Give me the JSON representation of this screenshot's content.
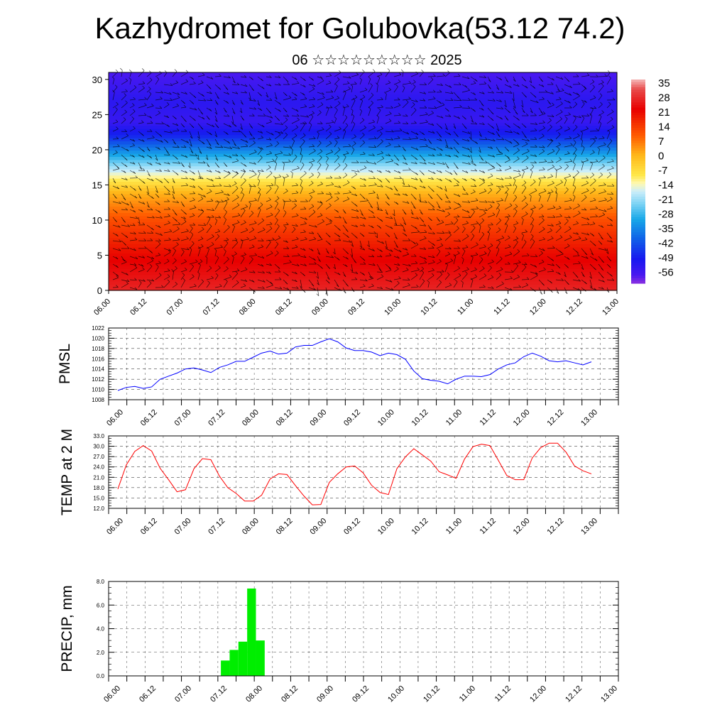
{
  "title": "Kazhydromet for Golubovka(53.12 74.2)",
  "subtitle": "06 ☆☆☆☆☆☆☆☆☆ 2025",
  "time_labels": [
    "06.00",
    "06.12",
    "07.00",
    "07.12",
    "08.00",
    "08.12",
    "09.00",
    "09.12",
    "10.00",
    "10.12",
    "11.00",
    "11.12",
    "12.00",
    "12.12",
    "13.00"
  ],
  "chart_data": [
    {
      "type": "heatmap",
      "y_ticks": [
        0,
        5,
        10,
        15,
        20,
        25,
        30
      ],
      "ylim": [
        0,
        31
      ],
      "colorbar": {
        "labels": [
          "35",
          "28",
          "21",
          "14",
          "7",
          "0",
          "-7",
          "-14",
          "-21",
          "-28",
          "-35",
          "-42",
          "-49",
          "-56"
        ],
        "stops": [
          {
            "value": 40,
            "color": "#f5b8b8"
          },
          {
            "value": 35,
            "color": "#e84a4a"
          },
          {
            "value": 25,
            "color": "#e80000"
          },
          {
            "value": 12,
            "color": "#ff5a00"
          },
          {
            "value": 2,
            "color": "#ffb81a"
          },
          {
            "value": -8,
            "color": "#ffe84a"
          },
          {
            "value": -12,
            "color": "#fff8b0"
          },
          {
            "value": -16,
            "color": "#cdeefa"
          },
          {
            "value": -22,
            "color": "#7fd4f5"
          },
          {
            "value": -30,
            "color": "#18a8e8"
          },
          {
            "value": -40,
            "color": "#1060e8"
          },
          {
            "value": -50,
            "color": "#1818f0"
          },
          {
            "value": -58,
            "color": "#4a18f0"
          },
          {
            "value": -62,
            "color": "#8a30e0"
          }
        ]
      },
      "profile": [
        {
          "level": 0,
          "value": 30
        },
        {
          "level": 5,
          "value": 24
        },
        {
          "level": 10,
          "value": 14
        },
        {
          "level": 14,
          "value": 2
        },
        {
          "level": 16,
          "value": -10
        },
        {
          "level": 18,
          "value": -22
        },
        {
          "level": 20,
          "value": -35
        },
        {
          "level": 22,
          "value": -48
        },
        {
          "level": 24,
          "value": -55
        },
        {
          "level": 27,
          "value": -53
        },
        {
          "level": 31,
          "value": -58
        }
      ]
    },
    {
      "type": "line",
      "ylabel": "PMSL",
      "y_ticks": [
        1008,
        1010,
        1012,
        1014,
        1016,
        1018,
        1020,
        1022
      ],
      "ylim": [
        1008,
        1022
      ],
      "color": "#0000ff",
      "values": [
        1009.8,
        1010.4,
        1010.6,
        1010.2,
        1010.5,
        1012.0,
        1012.6,
        1013.2,
        1014.0,
        1014.2,
        1013.8,
        1013.3,
        1014.3,
        1014.8,
        1015.5,
        1015.5,
        1016.3,
        1017.1,
        1017.5,
        1016.9,
        1017.1,
        1018.3,
        1018.6,
        1018.6,
        1019.3,
        1019.9,
        1019.3,
        1018.1,
        1017.6,
        1017.6,
        1017.3,
        1016.6,
        1017.1,
        1016.8,
        1015.9,
        1013.6,
        1012.1,
        1011.8,
        1011.6,
        1011.1,
        1012.0,
        1012.6,
        1012.6,
        1012.5,
        1012.9,
        1014.0,
        1014.8,
        1015.2,
        1016.4,
        1017.1,
        1016.5,
        1015.6,
        1015.4,
        1015.6,
        1015.2,
        1014.8,
        1015.4
      ]
    },
    {
      "type": "line",
      "ylabel": "TEMP at 2 M",
      "y_ticks": [
        "12.0",
        "15.0",
        "18.0",
        "21.0",
        "24.0",
        "27.0",
        "30.0",
        "33.0"
      ],
      "ylim": [
        12,
        33
      ],
      "color": "#ff0000",
      "values": [
        17.6,
        24.6,
        28.5,
        30.2,
        28.6,
        23.6,
        20.3,
        16.8,
        17.4,
        23.5,
        26.4,
        26.1,
        21.4,
        18.0,
        16.3,
        14.1,
        14.1,
        15.8,
        20.5,
        22.0,
        21.8,
        18.6,
        15.6,
        13.0,
        13.1,
        19.5,
        22.0,
        24.0,
        24.3,
        22.3,
        18.7,
        16.6,
        16.0,
        23.5,
        26.9,
        29.3,
        27.5,
        25.7,
        22.6,
        21.7,
        20.7,
        26.3,
        29.9,
        30.6,
        30.2,
        25.9,
        21.5,
        20.3,
        20.3,
        26.6,
        29.6,
        30.9,
        30.9,
        28.3,
        24.3,
        22.9,
        22.0
      ]
    },
    {
      "type": "bar",
      "ylabel": "PRECIP, mm",
      "y_ticks": [
        "0.0",
        "2.0",
        "4.0",
        "6.0",
        "8.0"
      ],
      "ylim": [
        0,
        8
      ],
      "color": "#00ee00",
      "values": [
        0,
        0,
        0,
        0,
        0,
        0,
        0,
        0,
        0,
        0,
        0,
        0,
        1.3,
        2.2,
        2.9,
        7.4,
        3.0,
        0,
        0,
        0,
        0,
        0,
        0,
        0,
        0,
        0,
        0,
        0,
        0,
        0,
        0,
        0,
        0,
        0,
        0,
        0,
        0,
        0,
        0,
        0,
        0,
        0,
        0,
        0,
        0,
        0,
        0,
        0,
        0,
        0,
        0,
        0,
        0,
        0,
        0,
        0,
        0
      ]
    }
  ]
}
